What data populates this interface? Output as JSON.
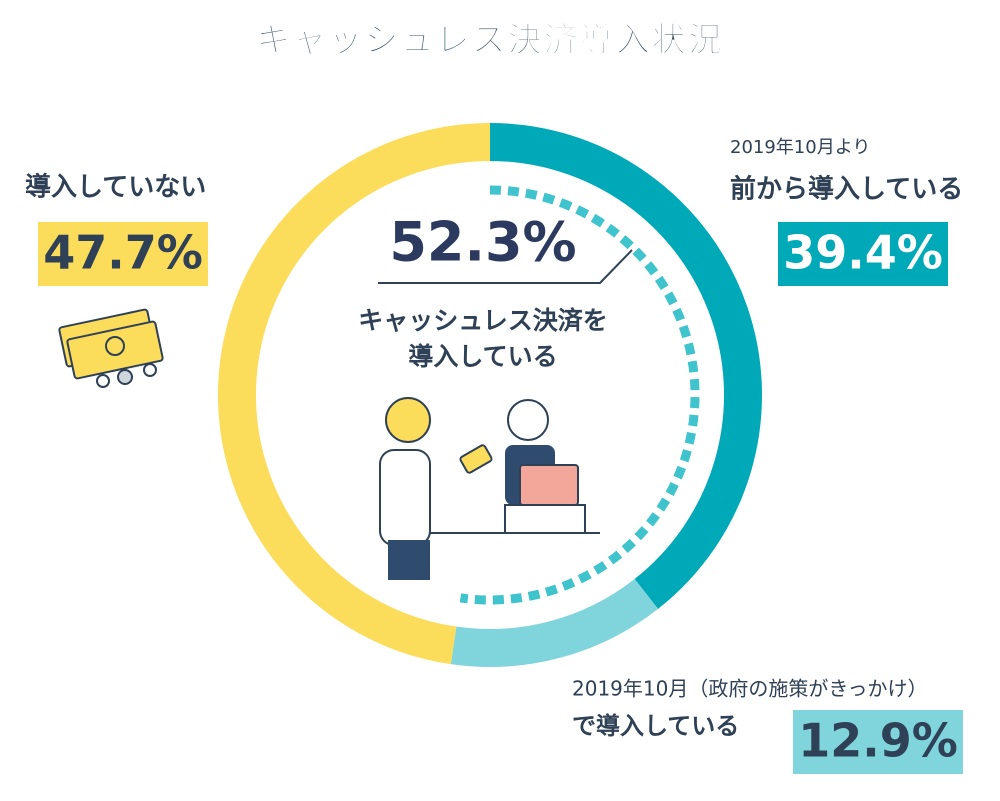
{
  "chart_data": {
    "type": "donut",
    "title": "キャッシュレス決済導入状況",
    "categories": [
      [
        "2019年10月より",
        "前から導入している"
      ],
      [
        "2019年10月（政府の施策がきっかけ）",
        "で導入している"
      ],
      [
        "導入していない"
      ]
    ],
    "values": [
      39.4,
      12.9,
      47.7
    ],
    "value_labels": [
      "39.4%",
      "12.9%",
      "47.7%"
    ],
    "colors": [
      "#00a9b8",
      "#80d5dc",
      "#fcdc5b"
    ],
    "center": {
      "value": 52.3,
      "label": "52.3%",
      "text": [
        "キャッシュレス決済を",
        "導入している"
      ],
      "color": "#3fc3cc"
    }
  }
}
